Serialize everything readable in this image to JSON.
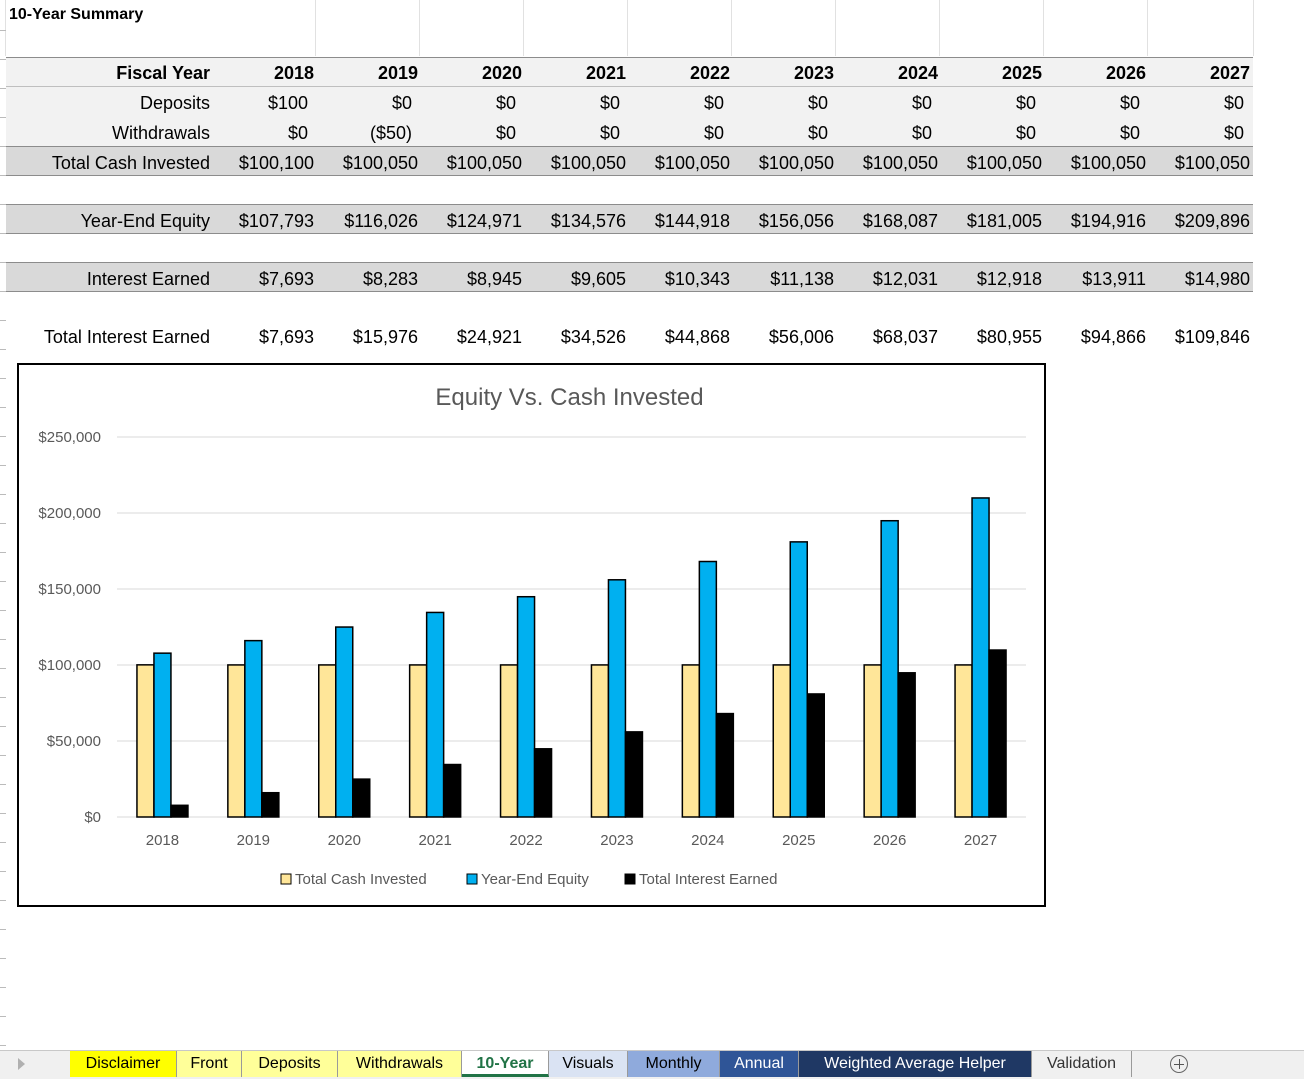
{
  "sheet": {
    "title": "10-Year Summary",
    "row_labels": {
      "fiscal_year": "Fiscal Year",
      "deposits": "Deposits",
      "withdrawals": "Withdrawals",
      "total_cash": "Total Cash Invested",
      "year_end_equity": "Year-End Equity",
      "interest_earned": "Interest Earned",
      "total_interest": "Total Interest Earned"
    },
    "years": [
      "2018",
      "2019",
      "2020",
      "2021",
      "2022",
      "2023",
      "2024",
      "2025",
      "2026",
      "2027"
    ],
    "deposits": [
      "$100",
      "$0",
      "$0",
      "$0",
      "$0",
      "$0",
      "$0",
      "$0",
      "$0",
      "$0"
    ],
    "withdrawals": [
      "$0",
      "($50)",
      "$0",
      "$0",
      "$0",
      "$0",
      "$0",
      "$0",
      "$0",
      "$0"
    ],
    "total_cash": [
      "$100,100",
      "$100,050",
      "$100,050",
      "$100,050",
      "$100,050",
      "$100,050",
      "$100,050",
      "$100,050",
      "$100,050",
      "$100,050"
    ],
    "year_end_equity": [
      "$107,793",
      "$116,026",
      "$124,971",
      "$134,576",
      "$144,918",
      "$156,056",
      "$168,087",
      "$181,005",
      "$194,916",
      "$209,896"
    ],
    "interest_earned": [
      "$7,693",
      "$8,283",
      "$8,945",
      "$9,605",
      "$10,343",
      "$11,138",
      "$12,031",
      "$12,918",
      "$13,911",
      "$14,980"
    ],
    "total_interest": [
      "$7,693",
      "$15,976",
      "$24,921",
      "$34,526",
      "$44,868",
      "$56,006",
      "$68,037",
      "$80,955",
      "$94,866",
      "$109,846"
    ]
  },
  "chart_data": {
    "type": "bar",
    "title": "Equity Vs. Cash Invested",
    "categories": [
      "2018",
      "2019",
      "2020",
      "2021",
      "2022",
      "2023",
      "2024",
      "2025",
      "2026",
      "2027"
    ],
    "series": [
      {
        "name": "Total Cash Invested",
        "color": "#ffe699",
        "values": [
          100100,
          100050,
          100050,
          100050,
          100050,
          100050,
          100050,
          100050,
          100050,
          100050
        ]
      },
      {
        "name": "Year-End Equity",
        "color": "#00b0f0",
        "values": [
          107793,
          116026,
          124971,
          134576,
          144918,
          156056,
          168087,
          181005,
          194916,
          209896
        ]
      },
      {
        "name": "Total Interest Earned",
        "color": "#000000",
        "values": [
          7693,
          15976,
          24921,
          34526,
          44868,
          56006,
          68037,
          80955,
          94866,
          109846
        ]
      }
    ],
    "ylim": [
      0,
      250000
    ],
    "yticks": [
      0,
      50000,
      100000,
      150000,
      200000,
      250000
    ],
    "ytick_labels": [
      "$0",
      "$50,000",
      "$100,000",
      "$150,000",
      "$200,000",
      "$250,000"
    ],
    "grid": true,
    "legend": "bottom"
  },
  "tabs": [
    {
      "label": "Disclaimer",
      "bg": "#ffff00",
      "fg": "#000000"
    },
    {
      "label": "Front",
      "bg": "#ffff99",
      "fg": "#000000"
    },
    {
      "label": "Deposits",
      "bg": "#ffff99",
      "fg": "#000000"
    },
    {
      "label": "Withdrawals",
      "bg": "#ffff99",
      "fg": "#000000"
    },
    {
      "label": "10-Year",
      "bg": "#ffffff",
      "fg": "#217346",
      "active": true
    },
    {
      "label": "Visuals",
      "bg": "#dae3f3",
      "fg": "#000000"
    },
    {
      "label": "Monthly",
      "bg": "#8faadc",
      "fg": "#000000"
    },
    {
      "label": "Annual",
      "bg": "#2f5597",
      "fg": "#ffffff"
    },
    {
      "label": "Weighted Average Helper",
      "bg": "#1f3864",
      "fg": "#ffffff"
    },
    {
      "label": "Validation",
      "bg": "#f0f0f0",
      "fg": "#333333"
    }
  ],
  "tabbar_icons": {
    "scroll_left": "triangle-right-icon",
    "add_sheet": "plus-circle-icon"
  }
}
